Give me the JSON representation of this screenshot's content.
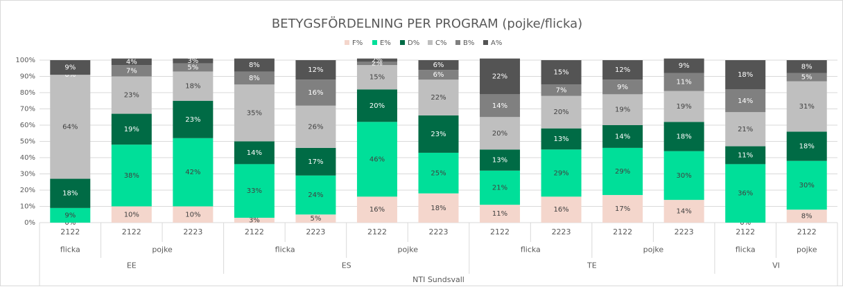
{
  "chart_data": {
    "type": "stacked_bar",
    "title": "BETYGSFÖRDELNING PER PROGRAM (pojke/flicka)",
    "categories": [
      [
        "NTI Sundsvall",
        "EE",
        "flicka",
        "2122"
      ],
      [
        "NTI Sundsvall",
        "EE",
        "pojke",
        "2122"
      ],
      [
        "NTI Sundsvall",
        "EE",
        "pojke",
        "2223"
      ],
      [
        "NTI Sundsvall",
        "ES",
        "flicka",
        "2122"
      ],
      [
        "NTI Sundsvall",
        "ES",
        "flicka",
        "2223"
      ],
      [
        "NTI Sundsvall",
        "ES",
        "pojke",
        "2122"
      ],
      [
        "NTI Sundsvall",
        "ES",
        "pojke",
        "2223"
      ],
      [
        "NTI Sundsvall",
        "TE",
        "flicka",
        "2122"
      ],
      [
        "NTI Sundsvall",
        "TE",
        "flicka",
        "2223"
      ],
      [
        "NTI Sundsvall",
        "TE",
        "pojke",
        "2122"
      ],
      [
        "NTI Sundsvall",
        "TE",
        "pojke",
        "2223"
      ],
      [
        "NTI Sundsvall",
        "VI",
        "flicka",
        "2122"
      ],
      [
        "NTI Sundsvall",
        "VI",
        "pojke",
        "2122"
      ]
    ],
    "series": [
      {
        "name": "F%",
        "color": "#f4d6cc",
        "values": [
          0,
          10,
          10,
          3,
          5,
          16,
          18,
          11,
          16,
          17,
          14,
          0,
          8
        ],
        "value_labels": [
          "0%",
          "10%",
          "10%",
          "3%",
          "5%",
          "16%",
          "18%",
          "11%",
          "16%",
          "17%",
          "14%",
          "0%",
          "8%"
        ]
      },
      {
        "name": "E%",
        "color": "#00df99",
        "values": [
          9,
          38,
          42,
          33,
          24,
          46,
          25,
          21,
          29,
          29,
          30,
          36,
          30
        ],
        "value_labels": [
          "9%",
          "38%",
          "42%",
          "33%",
          "24%",
          "46%",
          "25%",
          "21%",
          "29%",
          "29%",
          "30%",
          "36%",
          "30%"
        ]
      },
      {
        "name": "D%",
        "color": "#006b45",
        "values": [
          18,
          19,
          23,
          14,
          17,
          20,
          23,
          13,
          13,
          14,
          18,
          11,
          18
        ],
        "value_labels": [
          "18%",
          "19%",
          "23%",
          "14%",
          "17%",
          "20%",
          "23%",
          "13%",
          "13%",
          "14%",
          "18%",
          "11%",
          "18%"
        ]
      },
      {
        "name": "C%",
        "color": "#bfbfbf",
        "values": [
          64,
          23,
          18,
          35,
          26,
          15,
          22,
          20,
          20,
          19,
          19,
          21,
          31
        ],
        "value_labels": [
          "64%",
          "23%",
          "18%",
          "35%",
          "26%",
          "15%",
          "22%",
          "20%",
          "20%",
          "19%",
          "19%",
          "21%",
          "31%"
        ]
      },
      {
        "name": "B%",
        "color": "#808080",
        "values": [
          0,
          7,
          5,
          8,
          16,
          2,
          6,
          14,
          7,
          9,
          11,
          14,
          5
        ],
        "value_labels": [
          "0%",
          "7%",
          "5%",
          "8%",
          "16%",
          "2%",
          "6%",
          "14%",
          "7%",
          "9%",
          "11%",
          "14%",
          "5%"
        ]
      },
      {
        "name": "A%",
        "color": "#545454",
        "values": [
          9,
          4,
          3,
          8,
          12,
          2,
          6,
          22,
          15,
          12,
          9,
          18,
          8
        ],
        "value_labels": [
          "9%",
          "4%",
          "3%",
          "8%",
          "12%",
          "2%",
          "6%",
          "22%",
          "15%",
          "12%",
          "9%",
          "18%",
          "8%"
        ]
      }
    ],
    "ylim": [
      0,
      100
    ],
    "yticks": [
      {
        "value": 0,
        "label": "0%"
      },
      {
        "value": 10,
        "label": "10%"
      },
      {
        "value": 20,
        "label": "20%"
      },
      {
        "value": 30,
        "label": "30%"
      },
      {
        "value": 40,
        "label": "40%"
      },
      {
        "value": 50,
        "label": "50%"
      },
      {
        "value": 60,
        "label": "60%"
      },
      {
        "value": 70,
        "label": "70%"
      },
      {
        "value": 80,
        "label": "80%"
      },
      {
        "value": 90,
        "label": "90%"
      },
      {
        "value": 100,
        "label": "100%"
      }
    ],
    "grid": true,
    "legend": "top"
  }
}
